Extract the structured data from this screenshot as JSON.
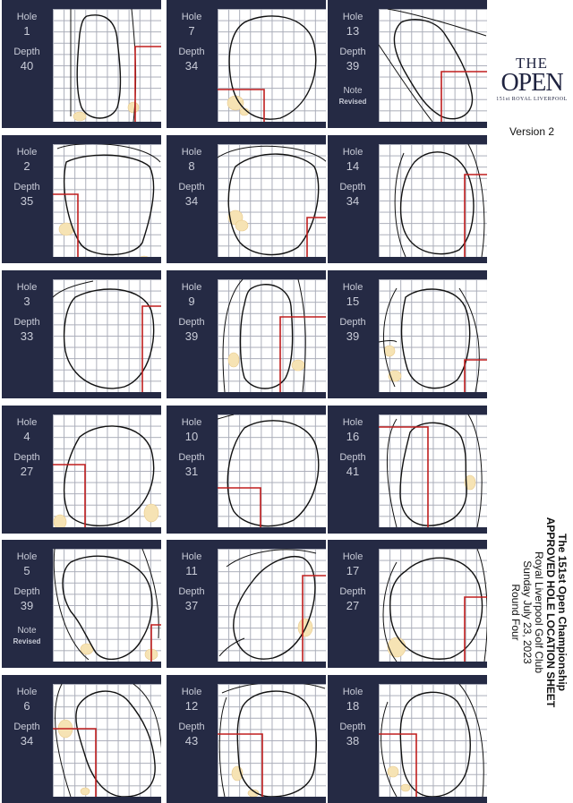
{
  "logo": {
    "line1": "THE",
    "line2": "OPEN",
    "line3": "151st ROYAL LIVERPOOL"
  },
  "version": "Version 2",
  "title": {
    "line1": "The 151st Open Championship",
    "line2": "APPROVED HOLE LOCATION SHEET",
    "line3": "Royal Liverpool Golf Club",
    "line4": "Sunday July 23, 2023",
    "line5": "Round Four"
  },
  "labels": {
    "hole": "Hole",
    "depth": "Depth",
    "note": "Note",
    "revised": "Revised"
  },
  "colors": {
    "panel": "#252a44",
    "marker": "#c01e1e",
    "bunker": "#f6e3b4",
    "green_outline": "#111111"
  },
  "holes": [
    {
      "hole": "1",
      "depth": "40",
      "note": ""
    },
    {
      "hole": "2",
      "depth": "35",
      "note": ""
    },
    {
      "hole": "3",
      "depth": "33",
      "note": ""
    },
    {
      "hole": "4",
      "depth": "27",
      "note": ""
    },
    {
      "hole": "5",
      "depth": "39",
      "note": "Revised"
    },
    {
      "hole": "6",
      "depth": "34",
      "note": ""
    },
    {
      "hole": "7",
      "depth": "34",
      "note": ""
    },
    {
      "hole": "8",
      "depth": "34",
      "note": ""
    },
    {
      "hole": "9",
      "depth": "39",
      "note": ""
    },
    {
      "hole": "10",
      "depth": "31",
      "note": ""
    },
    {
      "hole": "11",
      "depth": "37",
      "note": ""
    },
    {
      "hole": "12",
      "depth": "43",
      "note": ""
    },
    {
      "hole": "13",
      "depth": "39",
      "note": "Revised"
    },
    {
      "hole": "14",
      "depth": "34",
      "note": ""
    },
    {
      "hole": "15",
      "depth": "39",
      "note": ""
    },
    {
      "hole": "16",
      "depth": "41",
      "note": ""
    },
    {
      "hole": "17",
      "depth": "27",
      "note": ""
    },
    {
      "hole": "18",
      "depth": "38",
      "note": ""
    }
  ]
}
